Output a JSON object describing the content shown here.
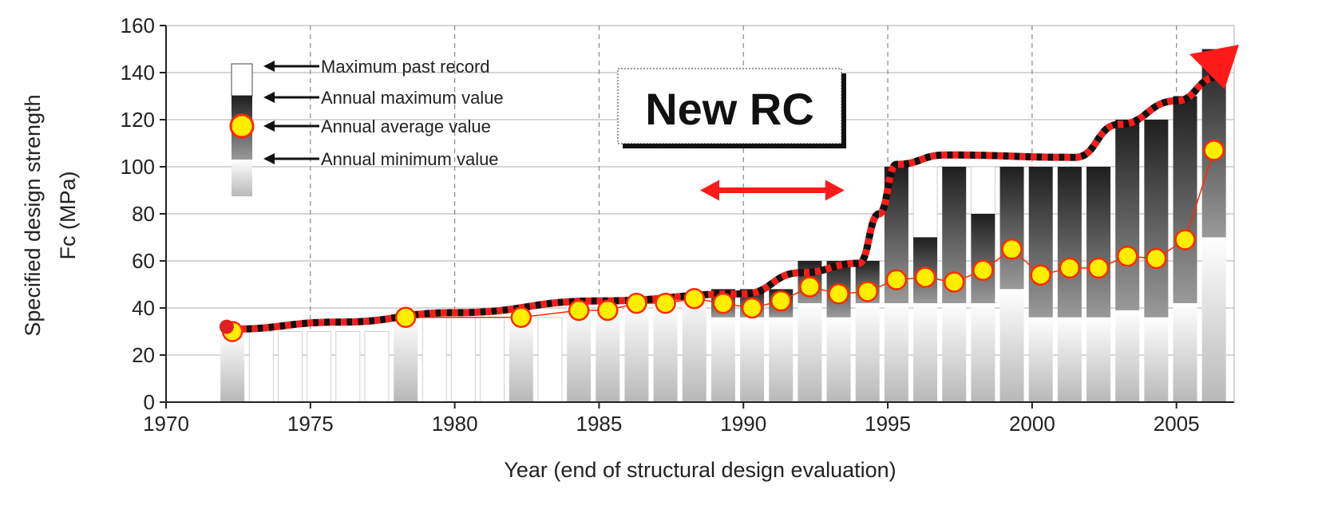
{
  "chart_data": {
    "type": "bar",
    "title": "",
    "xlabel": "Year (end of structural design evaluation)",
    "ylabel_line1": "Specified design strength",
    "ylabel_line2": "Fc    (MPa)",
    "xlim": [
      1970,
      2007
    ],
    "ylim": [
      0,
      160
    ],
    "x_ticks": [
      1970,
      1975,
      1980,
      1985,
      1990,
      1995,
      2000,
      2005
    ],
    "y_ticks": [
      0,
      20,
      40,
      60,
      80,
      100,
      120,
      140,
      160
    ],
    "grid": true,
    "annotation": "New RC",
    "legend_position": "top-left",
    "legend": {
      "max_record": "Maximum past record",
      "annual_max": "Annual maximum value",
      "annual_avg": "Annual average value",
      "annual_min": "Annual minimum value"
    },
    "colors": {
      "bar_dark": "#2b2b2b",
      "bar_light": "#f2f2f2",
      "avg_marker": "#ffee00",
      "avg_marker_edge": "#ff2a00",
      "trend_line": "#ff1a1a",
      "arrow": "#ff1a1a"
    },
    "bars": [
      {
        "year": 1972.3,
        "min": 0,
        "max": 30,
        "record": 30,
        "avg": 30
      },
      {
        "year": 1973.3,
        "min": 0,
        "max": 0,
        "record": 30,
        "avg": null
      },
      {
        "year": 1974.3,
        "min": 0,
        "max": 0,
        "record": 30,
        "avg": null
      },
      {
        "year": 1975.3,
        "min": 0,
        "max": 0,
        "record": 30,
        "avg": null
      },
      {
        "year": 1976.3,
        "min": 0,
        "max": 0,
        "record": 30,
        "avg": null
      },
      {
        "year": 1977.3,
        "min": 0,
        "max": 0,
        "record": 30,
        "avg": null
      },
      {
        "year": 1978.3,
        "min": 0,
        "max": 36,
        "record": 36,
        "avg": 36
      },
      {
        "year": 1979.3,
        "min": 0,
        "max": 0,
        "record": 36,
        "avg": null
      },
      {
        "year": 1980.3,
        "min": 0,
        "max": 0,
        "record": 36,
        "avg": null
      },
      {
        "year": 1981.3,
        "min": 0,
        "max": 0,
        "record": 36,
        "avg": null
      },
      {
        "year": 1982.3,
        "min": 0,
        "max": 36,
        "record": 36,
        "avg": 36
      },
      {
        "year": 1983.3,
        "min": 0,
        "max": 0,
        "record": 36,
        "avg": null
      },
      {
        "year": 1984.3,
        "min": 0,
        "max": 40,
        "record": 40,
        "avg": 39
      },
      {
        "year": 1985.3,
        "min": 0,
        "max": 40,
        "record": 40,
        "avg": 39
      },
      {
        "year": 1986.3,
        "min": 0,
        "max": 42,
        "record": 42,
        "avg": 42
      },
      {
        "year": 1987.3,
        "min": 0,
        "max": 42,
        "record": 42,
        "avg": 42
      },
      {
        "year": 1988.3,
        "min": 0,
        "max": 48,
        "record": 48,
        "avg": 44
      },
      {
        "year": 1989.3,
        "min": 36,
        "max": 48,
        "record": 48,
        "avg": 42
      },
      {
        "year": 1990.3,
        "min": 36,
        "max": 48,
        "record": 48,
        "avg": 40
      },
      {
        "year": 1991.3,
        "min": 36,
        "max": 48,
        "record": 48,
        "avg": 43
      },
      {
        "year": 1992.3,
        "min": 42,
        "max": 60,
        "record": 60,
        "avg": 49
      },
      {
        "year": 1993.3,
        "min": 36,
        "max": 60,
        "record": 60,
        "avg": 46
      },
      {
        "year": 1994.3,
        "min": 42,
        "max": 60,
        "record": 60,
        "avg": 47
      },
      {
        "year": 1995.3,
        "min": 42,
        "max": 100,
        "record": 100,
        "avg": 52
      },
      {
        "year": 1996.3,
        "min": 42,
        "max": 70,
        "record": 100,
        "avg": 53
      },
      {
        "year": 1997.3,
        "min": 42,
        "max": 100,
        "record": 100,
        "avg": 51
      },
      {
        "year": 1998.3,
        "min": 42,
        "max": 80,
        "record": 100,
        "avg": 56
      },
      {
        "year": 1999.3,
        "min": 48,
        "max": 100,
        "record": 100,
        "avg": 65
      },
      {
        "year": 2000.3,
        "min": 36,
        "max": 100,
        "record": 100,
        "avg": 54
      },
      {
        "year": 2001.3,
        "min": 36,
        "max": 100,
        "record": 100,
        "avg": 57
      },
      {
        "year": 2002.3,
        "min": 36,
        "max": 100,
        "record": 100,
        "avg": 57
      },
      {
        "year": 2003.3,
        "min": 39,
        "max": 120,
        "record": 120,
        "avg": 62
      },
      {
        "year": 2004.3,
        "min": 36,
        "max": 120,
        "record": 120,
        "avg": 61
      },
      {
        "year": 2005.3,
        "min": 42,
        "max": 130,
        "record": 130,
        "avg": 69
      },
      {
        "year": 2006.3,
        "min": 70,
        "max": 150,
        "record": 150,
        "avg": 107
      }
    ],
    "trend": [
      {
        "x": 1972.2,
        "y": 31
      },
      {
        "x": 1976,
        "y": 34
      },
      {
        "x": 1980,
        "y": 38
      },
      {
        "x": 1985,
        "y": 43
      },
      {
        "x": 1990,
        "y": 46
      },
      {
        "x": 1992,
        "y": 55
      },
      {
        "x": 1994,
        "y": 59
      },
      {
        "x": 1994.7,
        "y": 80
      },
      {
        "x": 1995.3,
        "y": 101
      },
      {
        "x": 1997,
        "y": 105
      },
      {
        "x": 2001.5,
        "y": 104
      },
      {
        "x": 2003,
        "y": 118
      },
      {
        "x": 2005,
        "y": 128
      },
      {
        "x": 2006.4,
        "y": 138
      }
    ],
    "double_arrow": {
      "x_start": 1988.5,
      "x_end": 1993.5,
      "y": 90
    }
  }
}
